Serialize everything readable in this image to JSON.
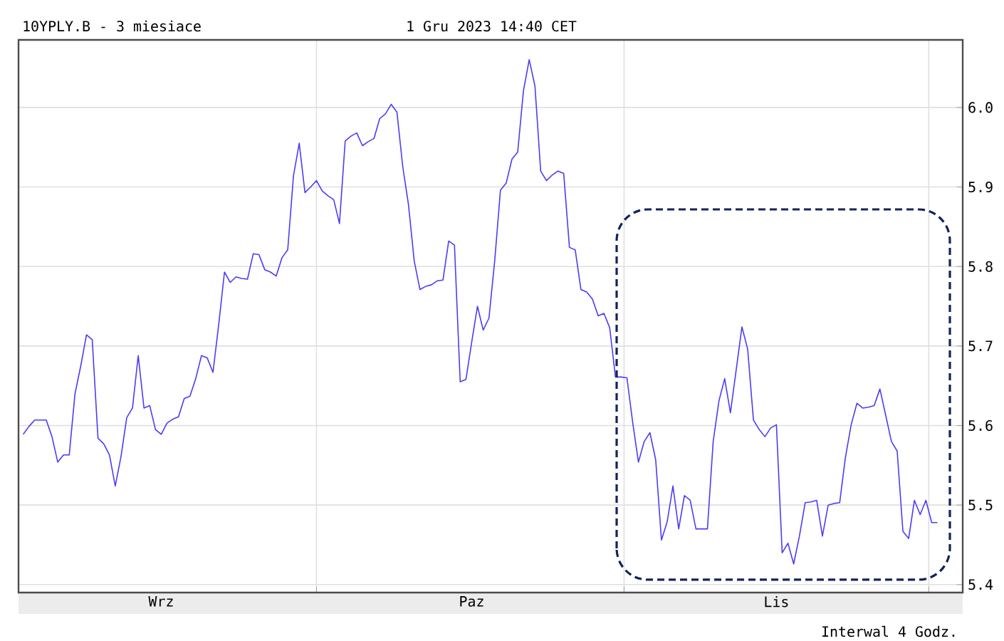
{
  "chart_data": {
    "type": "line",
    "title": "10YPLY.B - 3 miesiace",
    "subtitle": "1 Gru 2023 14:40 CET",
    "annotations": [
      "Interwal 4 Godz."
    ],
    "categories": [
      null,
      null,
      null,
      null,
      null,
      null,
      null,
      null,
      null,
      null,
      null,
      null,
      null,
      null,
      null,
      null,
      null,
      null,
      null,
      null,
      null,
      null,
      null,
      null,
      "Wrz",
      null,
      null,
      null,
      null,
      null,
      null,
      null,
      null,
      null,
      null,
      null,
      null,
      null,
      null,
      null,
      null,
      null,
      null,
      null,
      null,
      null,
      null,
      null,
      null,
      null,
      null,
      null,
      null,
      null,
      null,
      null,
      null,
      null,
      null,
      null,
      null,
      null,
      null,
      null,
      null,
      null,
      null,
      null,
      null,
      null,
      null,
      null,
      null,
      null,
      null,
      null,
      null,
      null,
      "Paz",
      null,
      null,
      null,
      null,
      null,
      null,
      null,
      null,
      null,
      null,
      null,
      null,
      null,
      null,
      null,
      null,
      null,
      null,
      null,
      null,
      null,
      null,
      null,
      null,
      null,
      null,
      null,
      null,
      null,
      null,
      null,
      null,
      null,
      null,
      null,
      null,
      null,
      null,
      null,
      null,
      null,
      null,
      null,
      null,
      null,
      null,
      null,
      null,
      null,
      null,
      null,
      null,
      "Lis",
      null,
      null,
      null,
      null,
      null,
      null,
      null,
      null,
      null,
      null,
      null,
      null,
      null,
      null,
      null,
      null,
      null,
      null,
      null,
      null,
      null,
      null,
      null,
      null,
      null,
      null,
      null,
      null
    ],
    "series": [
      {
        "color": "#4b3cf5",
        "values": [
          5.589,
          5.599,
          5.607,
          5.607,
          5.607,
          5.586,
          5.554,
          5.563,
          5.563,
          5.64,
          5.675,
          5.714,
          5.708,
          5.584,
          5.577,
          5.563,
          5.524,
          5.561,
          5.61,
          5.622,
          5.688,
          5.622,
          5.625,
          5.595,
          5.589,
          5.603,
          5.608,
          5.611,
          5.634,
          5.637,
          5.659,
          5.688,
          5.685,
          5.667,
          5.727,
          5.793,
          5.78,
          5.787,
          5.785,
          5.784,
          5.816,
          5.815,
          5.796,
          5.793,
          5.788,
          5.811,
          5.821,
          5.914,
          5.955,
          5.893,
          5.9,
          5.908,
          5.895,
          5.889,
          5.884,
          5.854,
          5.958,
          5.964,
          5.968,
          5.952,
          5.957,
          5.961,
          5.986,
          5.992,
          6.004,
          5.994,
          5.926,
          5.878,
          5.807,
          5.771,
          5.775,
          5.777,
          5.782,
          5.783,
          5.832,
          5.827,
          5.655,
          5.658,
          5.705,
          5.75,
          5.72,
          5.735,
          5.807,
          5.896,
          5.905,
          5.935,
          5.944,
          6.021,
          6.06,
          6.027,
          5.92,
          5.908,
          5.915,
          5.92,
          5.917,
          5.824,
          5.821,
          5.771,
          5.768,
          5.759,
          5.738,
          5.741,
          5.723,
          5.661,
          5.661,
          5.66,
          5.604,
          5.554,
          5.58,
          5.591,
          5.557,
          5.456,
          5.479,
          5.524,
          5.47,
          5.512,
          5.506,
          5.47,
          5.47,
          5.47,
          5.58,
          5.631,
          5.659,
          5.616,
          5.67,
          5.724,
          5.696,
          5.607,
          5.595,
          5.586,
          5.597,
          5.601,
          5.44,
          5.452,
          5.426,
          5.461,
          5.503,
          5.504,
          5.506,
          5.461,
          5.5,
          5.502,
          5.503,
          5.56,
          5.601,
          5.628,
          5.622,
          5.623,
          5.625,
          5.646,
          5.613,
          5.58,
          5.568,
          5.467,
          5.458,
          5.506,
          5.488,
          5.506,
          5.478,
          5.478
        ]
      }
    ],
    "ylim": [
      5.39,
      6.085
    ],
    "yticks": [
      {
        "value": 5.4,
        "label": "5.4"
      },
      {
        "value": 5.5,
        "label": "5.5"
      },
      {
        "value": 5.6,
        "label": "5.6"
      },
      {
        "value": 5.7,
        "label": "5.7"
      },
      {
        "value": 5.8,
        "label": "5.8"
      },
      {
        "value": 5.9,
        "label": "5.9"
      },
      {
        "value": 6.0,
        "label": "6.0"
      }
    ],
    "grid": true
  }
}
